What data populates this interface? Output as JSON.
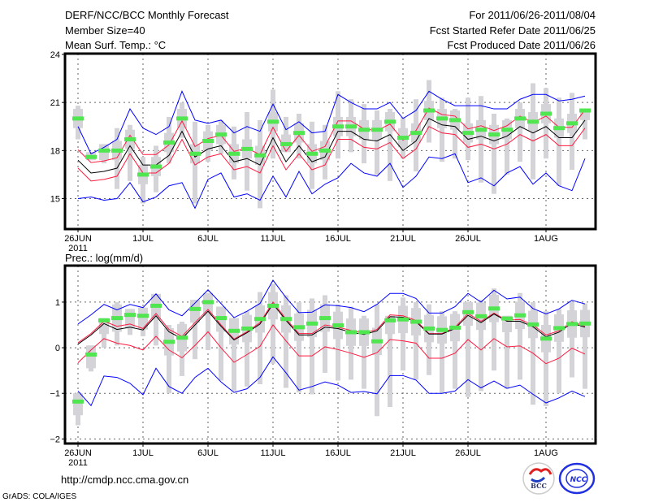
{
  "header": {
    "title": "DERF/NCC/BCC Monthly Forecast",
    "member_size": "Member Size=40",
    "variable": "Mean Surf. Temp.: °C",
    "period": "For 2011/06/26-2011/08/04",
    "started": "Fcst Started Refer Date 2011/06/25",
    "produced": "Fcst Produced Date 2011/06/26"
  },
  "footer": {
    "url": "http://cmdp.ncc.cma.gov.cn",
    "grads": "GrADS: COLA/IGES",
    "logo_bcc": "BCC",
    "logo_ncc": "NCC"
  },
  "colors": {
    "ensemble_range": "#0000ff",
    "spread": "#ff1a40",
    "mean": "#000000",
    "member": "#50e650",
    "box": "#d3d3d8"
  },
  "chart_data": [
    {
      "type": "line",
      "title": "Mean Surf. Temp.: °C",
      "ylim": [
        13.1,
        24.05
      ],
      "yticks": [
        15,
        18,
        21,
        24
      ],
      "xtick_labels": [
        "26JUN",
        "1JUL",
        "6JUL",
        "11JUL",
        "16JUL",
        "21JUL",
        "26JUL",
        "1AUG"
      ],
      "xtick_days": [
        0,
        5,
        10,
        15,
        20,
        25,
        30,
        36
      ],
      "year_label": "2011",
      "grid": true,
      "box_halfwidth": 0.6,
      "series": {
        "mean": [
          17.4,
          16.6,
          16.7,
          16.9,
          18.3,
          17.1,
          17.1,
          17.7,
          19.2,
          17.6,
          18.1,
          18.3,
          17.3,
          17.5,
          17.1,
          18.8,
          17.3,
          18.3,
          17.3,
          17.6,
          19.2,
          19.2,
          18.7,
          18.6,
          19.0,
          18.0,
          18.6,
          20.0,
          19.6,
          19.5,
          18.7,
          18.9,
          18.6,
          18.9,
          19.5,
          19.1,
          19.5,
          18.8,
          18.8,
          19.9
        ],
        "upper_spread": [
          18.05,
          17.25,
          17.35,
          17.55,
          18.95,
          17.75,
          17.75,
          18.35,
          19.85,
          18.25,
          18.75,
          18.95,
          17.95,
          18.15,
          17.75,
          19.45,
          17.95,
          18.95,
          17.95,
          18.25,
          19.85,
          19.85,
          19.35,
          19.25,
          19.65,
          18.65,
          19.25,
          20.65,
          20.25,
          20.15,
          19.35,
          19.55,
          19.25,
          19.55,
          20.15,
          19.75,
          20.15,
          19.45,
          19.45,
          20.55
        ],
        "lower_spread": [
          16.9,
          16.1,
          16.2,
          16.4,
          17.8,
          16.6,
          16.6,
          17.2,
          18.7,
          17.1,
          17.6,
          17.8,
          16.8,
          17.0,
          16.6,
          18.3,
          16.8,
          17.8,
          16.8,
          17.1,
          18.7,
          18.7,
          18.2,
          18.1,
          18.5,
          17.5,
          18.1,
          19.5,
          19.1,
          19.0,
          18.2,
          18.4,
          18.1,
          18.4,
          19.0,
          18.6,
          19.0,
          18.3,
          18.3,
          19.4
        ],
        "max": [
          19.5,
          17.8,
          18.2,
          18.7,
          20.6,
          19.4,
          19.0,
          19.5,
          21.7,
          19.9,
          19.7,
          19.9,
          19.1,
          19.5,
          19.2,
          20.9,
          19.3,
          19.8,
          19.1,
          19.2,
          21.5,
          21.0,
          20.6,
          20.6,
          21.0,
          20.0,
          20.5,
          21.7,
          21.2,
          20.8,
          20.8,
          20.8,
          20.6,
          20.6,
          21.2,
          21.5,
          21.5,
          21.1,
          21.2,
          21.4
        ],
        "min": [
          15.0,
          15.1,
          14.9,
          15.0,
          16.0,
          14.8,
          15.1,
          15.8,
          16.0,
          14.4,
          16.2,
          16.6,
          15.1,
          15.3,
          14.9,
          16.4,
          15.1,
          16.7,
          15.3,
          15.9,
          16.3,
          17.2,
          16.6,
          16.4,
          17.2,
          15.7,
          16.4,
          17.6,
          17.5,
          17.8,
          16.0,
          16.3,
          15.8,
          16.6,
          17.0,
          15.9,
          16.6,
          15.8,
          15.5,
          17.5
        ],
        "member": [
          20.0,
          17.6,
          18.0,
          18.0,
          18.7,
          16.5,
          17.0,
          18.5,
          20.0,
          17.8,
          18.6,
          19.0,
          17.8,
          18.1,
          17.7,
          19.8,
          18.4,
          19.1,
          17.8,
          18.0,
          19.5,
          19.5,
          19.3,
          19.3,
          19.8,
          18.8,
          19.1,
          20.5,
          20.0,
          19.9,
          19.1,
          19.3,
          19.0,
          19.3,
          20.0,
          19.8,
          20.3,
          19.4,
          19.7,
          20.5
        ],
        "whisker": [
          [
            18.7,
            20.8
          ],
          [
            17.4,
            17.9
          ],
          [
            17.2,
            18.4
          ],
          [
            15.6,
            19.4
          ],
          [
            16.1,
            19.6
          ],
          [
            14.7,
            17.6
          ],
          [
            15.4,
            18.3
          ],
          [
            17.2,
            20.1
          ],
          [
            18.8,
            21.0
          ],
          [
            14.7,
            19.8
          ],
          [
            17.3,
            19.6
          ],
          [
            17.8,
            19.9
          ],
          [
            16.2,
            19.5
          ],
          [
            15.5,
            20.4
          ],
          [
            14.4,
            19.9
          ],
          [
            17.5,
            21.8
          ],
          [
            17.9,
            20.1
          ],
          [
            17.5,
            20.3
          ],
          [
            15.6,
            19.8
          ],
          [
            16.2,
            19.6
          ],
          [
            17.5,
            21.7
          ],
          [
            17.9,
            21.2
          ],
          [
            17.2,
            20.9
          ],
          [
            16.5,
            20.5
          ],
          [
            16.1,
            20.6
          ],
          [
            17.5,
            20.1
          ],
          [
            16.7,
            21.2
          ],
          [
            18.5,
            22.4
          ],
          [
            17.3,
            21.3
          ],
          [
            17.5,
            20.6
          ],
          [
            17.4,
            21.3
          ],
          [
            16.0,
            21.4
          ],
          [
            15.3,
            20.3
          ],
          [
            16.5,
            20.0
          ],
          [
            17.3,
            21.0
          ],
          [
            16.2,
            22.2
          ],
          [
            17.5,
            21.9
          ],
          [
            15.8,
            21.3
          ],
          [
            16.8,
            21.6
          ],
          [
            18.7,
            20.5
          ]
        ]
      }
    },
    {
      "type": "line",
      "title": "Prec.: log(mm/d)",
      "ylim": [
        -2.1,
        1.8
      ],
      "yticks": [
        1,
        0,
        -1,
        -2
      ],
      "xtick_labels": [
        "26JUN",
        "1JUL",
        "6JUL",
        "11JUL",
        "16JUL",
        "21JUL",
        "26JUL",
        "1AUG"
      ],
      "xtick_days": [
        0,
        5,
        10,
        15,
        20,
        25,
        30,
        36
      ],
      "year_label": "2011",
      "grid": true,
      "box_halfwidth": 0.3,
      "series": {
        "mean": [
          0.08,
          0.28,
          0.53,
          0.4,
          0.45,
          0.39,
          0.7,
          0.35,
          0.2,
          0.5,
          0.8,
          0.47,
          0.17,
          0.33,
          0.52,
          0.96,
          0.6,
          0.28,
          0.28,
          0.45,
          0.42,
          0.34,
          0.29,
          0.37,
          0.68,
          0.67,
          0.57,
          0.3,
          0.3,
          0.42,
          0.71,
          0.55,
          0.74,
          0.58,
          0.58,
          0.46,
          0.24,
          0.34,
          0.54,
          0.45
        ],
        "upper_spread": [
          0.11,
          0.31,
          0.58,
          0.47,
          0.52,
          0.42,
          0.75,
          0.4,
          0.25,
          0.55,
          0.84,
          0.5,
          0.19,
          0.35,
          0.55,
          1.0,
          0.63,
          0.31,
          0.31,
          0.5,
          0.45,
          0.38,
          0.32,
          0.4,
          0.72,
          0.7,
          0.6,
          0.31,
          0.31,
          0.45,
          0.75,
          0.58,
          0.76,
          0.6,
          0.62,
          0.5,
          0.28,
          0.37,
          0.57,
          0.47
        ],
        "lower_spread": [
          -0.33,
          -0.05,
          0.2,
          0.1,
          0.05,
          -0.05,
          0.25,
          -0.05,
          -0.22,
          0.05,
          0.35,
          0.0,
          -0.32,
          -0.15,
          0.03,
          0.5,
          0.15,
          -0.18,
          -0.18,
          0.02,
          -0.04,
          -0.12,
          -0.21,
          -0.11,
          0.18,
          0.15,
          0.1,
          -0.23,
          -0.23,
          -0.12,
          0.18,
          -0.05,
          0.2,
          0.02,
          0.04,
          -0.12,
          -0.35,
          -0.23,
          -0.01,
          -0.14
        ],
        "max": [
          0.52,
          0.72,
          0.95,
          0.83,
          0.95,
          0.88,
          1.18,
          0.83,
          0.7,
          0.98,
          1.27,
          0.97,
          0.66,
          0.8,
          0.97,
          1.48,
          1.1,
          0.77,
          0.78,
          0.94,
          0.92,
          0.88,
          0.79,
          0.95,
          1.19,
          1.19,
          1.08,
          0.76,
          0.76,
          0.9,
          1.19,
          1.0,
          1.26,
          1.07,
          1.11,
          0.86,
          0.74,
          0.85,
          1.04,
          0.96
        ],
        "min": [
          -0.95,
          -1.27,
          -0.62,
          -0.65,
          -0.78,
          -1.03,
          -0.45,
          -0.85,
          -1.0,
          -0.65,
          -0.45,
          -0.75,
          -0.98,
          -0.9,
          -0.65,
          -0.2,
          -0.55,
          -0.93,
          -0.85,
          -0.75,
          -0.82,
          -0.98,
          -0.96,
          -1.01,
          -0.61,
          -0.61,
          -0.71,
          -1.0,
          -1.0,
          -0.95,
          -0.7,
          -0.88,
          -0.73,
          -0.89,
          -0.82,
          -1.02,
          -1.21,
          -1.1,
          -0.95,
          -1.07
        ],
        "member": [
          -1.18,
          -0.15,
          0.6,
          0.65,
          0.72,
          0.7,
          0.92,
          0.13,
          0.22,
          0.85,
          1.0,
          0.65,
          0.37,
          0.42,
          0.63,
          0.92,
          0.63,
          0.45,
          0.53,
          0.65,
          0.49,
          0.34,
          0.34,
          0.14,
          0.6,
          0.62,
          0.57,
          0.42,
          0.39,
          0.44,
          0.78,
          0.69,
          0.86,
          0.64,
          0.71,
          0.51,
          0.2,
          0.43,
          0.52,
          0.53
        ],
        "whisker": [
          [
            -1.7,
            -1.0
          ],
          [
            -0.52,
            0.05
          ],
          [
            0,
            0.65
          ],
          [
            0.05,
            1.0
          ],
          [
            0.28,
            0.85
          ],
          [
            0.25,
            0.88
          ],
          [
            0.05,
            1.18
          ],
          [
            -1.0,
            0.5
          ],
          [
            -0.62,
            0.57
          ],
          [
            -0.25,
            1.05
          ],
          [
            -0.05,
            1.2
          ],
          [
            -0.72,
            0.9
          ],
          [
            -0.95,
            0.65
          ],
          [
            -0.85,
            0.8
          ],
          [
            -0.8,
            1.22
          ],
          [
            -0.35,
            1.4
          ],
          [
            -0.88,
            1.15
          ],
          [
            -0.98,
            1.0
          ],
          [
            -1.02,
            1.08
          ],
          [
            -0.55,
            1.15
          ],
          [
            -0.72,
            0.95
          ],
          [
            -0.7,
            0.9
          ],
          [
            -0.9,
            0.7
          ],
          [
            -1.5,
            0.95
          ],
          [
            -1.3,
            0.7
          ],
          [
            -0.5,
            1.1
          ],
          [
            -0.7,
            1.0
          ],
          [
            -0.6,
            0.95
          ],
          [
            -1.0,
            0.8
          ],
          [
            -0.9,
            0.8
          ],
          [
            -1.08,
            1.0
          ],
          [
            -0.95,
            1.05
          ],
          [
            -0.5,
            1.3
          ],
          [
            -0.9,
            0.7
          ],
          [
            -0.7,
            1.2
          ],
          [
            -1.25,
            1.0
          ],
          [
            -1.28,
            0.8
          ],
          [
            -1.0,
            0.85
          ],
          [
            -0.65,
            1.0
          ],
          [
            -0.9,
            0.97
          ]
        ]
      }
    }
  ]
}
